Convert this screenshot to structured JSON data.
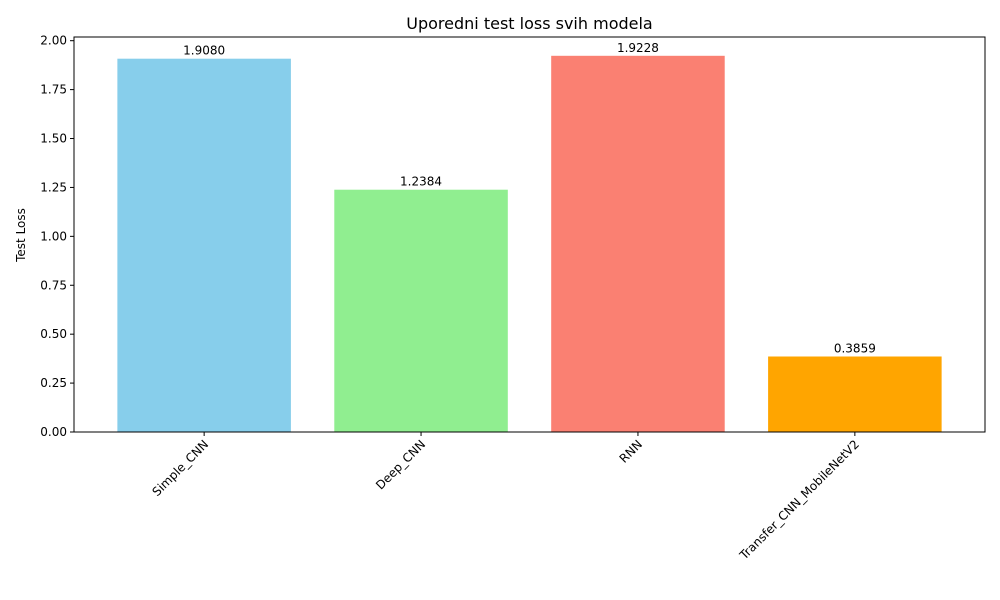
{
  "chart_data": {
    "type": "bar",
    "title": "Uporedni test loss svih modela",
    "xlabel": "",
    "ylabel": "Test Loss",
    "categories": [
      "Simple_CNN",
      "Deep_CNN",
      "RNN",
      "Transfer_CNN_MobileNetV2"
    ],
    "values": [
      1.908,
      1.2384,
      1.9228,
      0.3859
    ],
    "data_labels": [
      "1.9080",
      "1.2384",
      "1.9228",
      "0.3859"
    ],
    "colors": [
      "#87ceeb",
      "#90ee90",
      "#fa8072",
      "#ffa500"
    ],
    "ylim": [
      0,
      2.0189
    ],
    "yticks": [
      0.0,
      0.25,
      0.5,
      0.75,
      1.0,
      1.25,
      1.5,
      1.75,
      2.0
    ],
    "ytick_labels": [
      "0.00",
      "0.25",
      "0.50",
      "0.75",
      "1.00",
      "1.25",
      "1.50",
      "1.75",
      "2.00"
    ],
    "grid": false,
    "legend": "none",
    "x_tick_rotation": "45deg"
  }
}
